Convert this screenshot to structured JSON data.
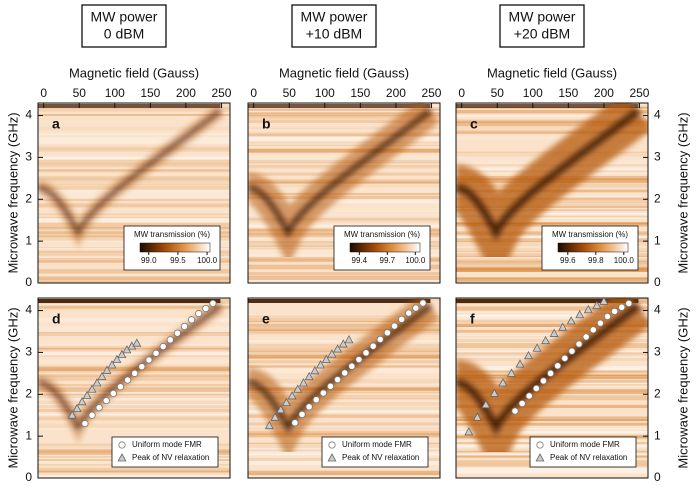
{
  "headers": [
    [
      "MW power",
      "0 dBM"
    ],
    [
      "MW power",
      "+10 dBM"
    ],
    [
      "MW power",
      "+20 dBM"
    ]
  ],
  "chart_data": [
    {
      "type": "heatmap",
      "label": "a",
      "xlabel": "Magnetic field (Gauss)",
      "ylabel": "Microwave frequency (GHz)",
      "xlim": [
        -8,
        262
      ],
      "xticks": [
        0,
        50,
        100,
        150,
        200,
        250
      ],
      "ylim": [
        0,
        4.3
      ],
      "yticks": [
        0,
        1,
        2,
        3,
        4
      ],
      "colorbar": {
        "title": "MW transmission (%)",
        "lim": [
          98.85,
          100.05
        ],
        "ticks": [
          {
            "value": 99.0,
            "label": "99.0"
          },
          {
            "value": 99.5,
            "label": "99.5"
          },
          {
            "value": 100.0,
            "label": "100.0"
          }
        ]
      }
    },
    {
      "type": "heatmap",
      "label": "b",
      "xlabel": "Magnetic field (Gauss)",
      "xlim": [
        -8,
        262
      ],
      "xticks": [
        0,
        50,
        100,
        150,
        200,
        250
      ],
      "ylim": [
        0,
        4.3
      ],
      "colorbar": {
        "title": "MW transmission (%)",
        "lim": [
          99.3,
          100.05
        ],
        "ticks": [
          {
            "value": 99.4,
            "label": "99.4"
          },
          {
            "value": 99.7,
            "label": "99.7"
          },
          {
            "value": 100.0,
            "label": "100.0"
          }
        ]
      }
    },
    {
      "type": "heatmap",
      "label": "c",
      "xlabel": "Magnetic field (Gauss)",
      "ylabel": "Microwave frequency (GHz)",
      "xlim": [
        -8,
        262
      ],
      "xticks": [
        0,
        50,
        100,
        150,
        200,
        250
      ],
      "ylim": [
        0,
        4.3
      ],
      "yticks": [
        0,
        1,
        2,
        3,
        4
      ],
      "colorbar": {
        "title": "MW transmission (%)",
        "lim": [
          99.53,
          100.03
        ],
        "ticks": [
          {
            "value": 99.6,
            "label": "99.6"
          },
          {
            "value": 99.8,
            "label": "99.8"
          },
          {
            "value": 100.0,
            "label": "100.0"
          }
        ]
      }
    },
    {
      "type": "scatter",
      "label": "d",
      "ylabel": "Microwave frequency (GHz)",
      "xlim": [
        -8,
        262
      ],
      "ylim": [
        0,
        4.3
      ],
      "yticks": [
        0,
        1,
        2,
        3,
        4
      ],
      "series": [
        {
          "name": "Uniform mode FMR",
          "marker": "circle",
          "color": "#ffffff",
          "x": [
            58,
            68,
            78,
            88,
            98,
            108,
            118,
            128,
            138,
            148,
            158,
            168,
            178,
            188,
            198,
            208,
            218,
            228,
            238
          ],
          "values": [
            1.3,
            1.5,
            1.68,
            1.85,
            2.02,
            2.18,
            2.34,
            2.5,
            2.66,
            2.82,
            2.98,
            3.14,
            3.3,
            3.46,
            3.62,
            3.78,
            3.93,
            4.05,
            4.17
          ]
        },
        {
          "name": "Peak of NV relaxation",
          "marker": "triangle",
          "color": "#cccccc",
          "x": [
            40,
            47,
            54,
            61,
            68,
            75,
            82,
            89,
            96,
            103,
            110,
            117,
            124,
            131
          ],
          "values": [
            1.5,
            1.66,
            1.82,
            1.97,
            2.12,
            2.27,
            2.42,
            2.57,
            2.7,
            2.83,
            2.95,
            3.06,
            3.15,
            3.22
          ]
        }
      ]
    },
    {
      "type": "scatter",
      "label": "e",
      "xlim": [
        -8,
        262
      ],
      "ylim": [
        0,
        4.3
      ],
      "series": [
        {
          "name": "Uniform mode FMR",
          "marker": "circle",
          "color": "#ffffff",
          "x": [
            58,
            68,
            78,
            88,
            98,
            108,
            118,
            128,
            138,
            148,
            158,
            168,
            178,
            188,
            198,
            208,
            218,
            228,
            238
          ],
          "values": [
            1.32,
            1.52,
            1.7,
            1.87,
            2.03,
            2.19,
            2.35,
            2.51,
            2.67,
            2.83,
            2.99,
            3.15,
            3.31,
            3.47,
            3.63,
            3.79,
            3.94,
            4.06,
            4.18
          ]
        },
        {
          "name": "Peak of NV relaxation",
          "marker": "triangle",
          "color": "#cccccc",
          "x": [
            22,
            30,
            38,
            46,
            54,
            62,
            70,
            78,
            86,
            94,
            102,
            110,
            118,
            126,
            134
          ],
          "values": [
            1.25,
            1.45,
            1.63,
            1.8,
            1.96,
            2.12,
            2.27,
            2.42,
            2.56,
            2.7,
            2.83,
            2.96,
            3.08,
            3.2,
            3.3
          ]
        }
      ]
    },
    {
      "type": "scatter",
      "label": "f",
      "ylabel": "Microwave frequency (GHz)",
      "xlim": [
        -8,
        262
      ],
      "ylim": [
        0,
        4.3
      ],
      "yticks": [
        0,
        1,
        2,
        3,
        4
      ],
      "series": [
        {
          "name": "Uniform mode FMR",
          "marker": "circle",
          "color": "#ffffff",
          "x": [
            75,
            85,
            95,
            105,
            115,
            125,
            135,
            145,
            155,
            165,
            175,
            185,
            195,
            205,
            215,
            225,
            235
          ],
          "values": [
            1.6,
            1.78,
            1.96,
            2.14,
            2.32,
            2.5,
            2.68,
            2.86,
            3.03,
            3.2,
            3.37,
            3.54,
            3.7,
            3.86,
            3.98,
            4.08,
            4.17
          ]
        },
        {
          "name": "Peak of NV relaxation",
          "marker": "triangle",
          "color": "#cccccc",
          "x": [
            10,
            22,
            34,
            46,
            58,
            70,
            82,
            94,
            106,
            118,
            130,
            142,
            154,
            166,
            178,
            190,
            200
          ],
          "values": [
            1.1,
            1.45,
            1.75,
            2.02,
            2.27,
            2.5,
            2.72,
            2.92,
            3.1,
            3.28,
            3.45,
            3.6,
            3.75,
            3.9,
            4.02,
            4.12,
            4.22
          ]
        }
      ]
    }
  ]
}
